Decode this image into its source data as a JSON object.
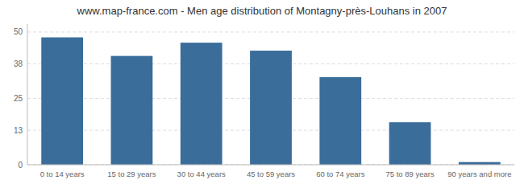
{
  "chart_data": {
    "type": "bar",
    "title": "www.map-france.com - Men age distribution of Montagny-près-Louhans in 2007",
    "categories": [
      "0 to 14 years",
      "15 to 29 years",
      "30 to 44 years",
      "45 to 59 years",
      "60 to 74 years",
      "75 to 89 years",
      "90 years and more"
    ],
    "values": [
      48,
      41,
      46,
      43,
      33,
      16,
      1
    ],
    "color": "#3a6d9a",
    "ylim": [
      0,
      53
    ],
    "yticks": [
      0,
      13,
      25,
      38,
      50
    ],
    "grid": true
  }
}
